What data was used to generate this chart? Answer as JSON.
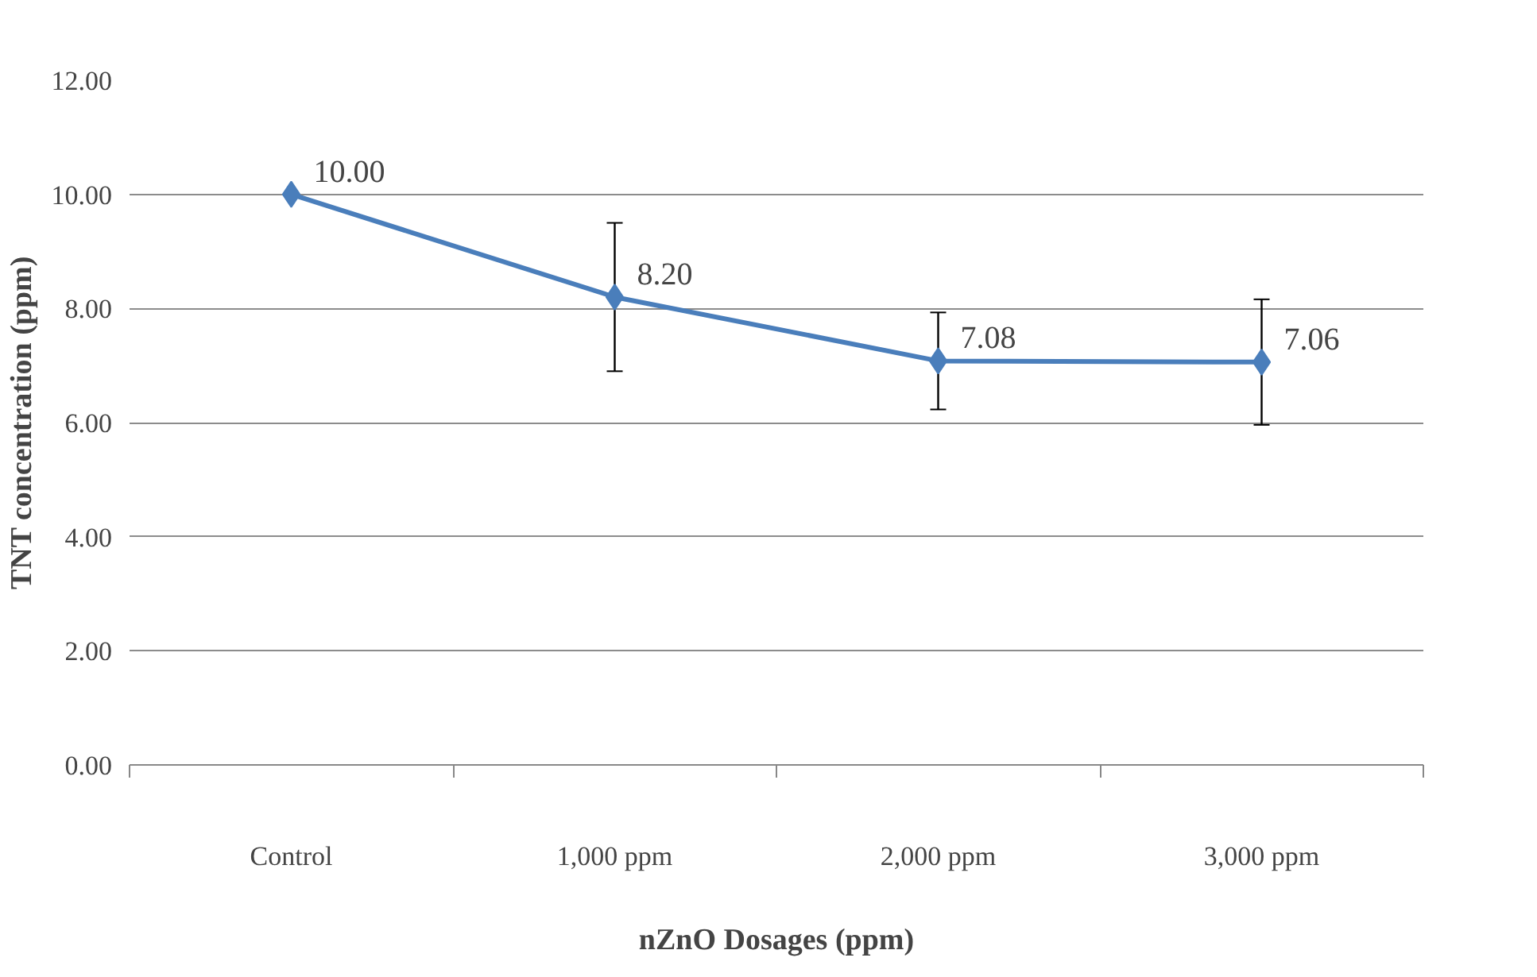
{
  "chart_data": {
    "type": "line",
    "xlabel": "nZnO Dosages (ppm)",
    "ylabel": "TNT concentration (ppm)",
    "categories": [
      "Control",
      "1,000 ppm",
      "2,000 ppm",
      "3,000 ppm"
    ],
    "series": [
      {
        "color": "#4a7ebb",
        "values": [
          10.0,
          8.2,
          7.08,
          7.06
        ],
        "errors": [
          null,
          1.3,
          0.85,
          1.1
        ],
        "value_labels": [
          "10.00",
          "8.20",
          "7.08",
          "7.06"
        ]
      }
    ],
    "ylim": [
      0,
      12
    ],
    "yticks": [
      {
        "value": 0,
        "label": "0.00"
      },
      {
        "value": 2,
        "label": "2.00"
      },
      {
        "value": 4,
        "label": "4.00"
      },
      {
        "value": 6,
        "label": "6.00"
      },
      {
        "value": 8,
        "label": "8.00"
      },
      {
        "value": 10,
        "label": "10.00"
      },
      {
        "value": 12,
        "label": "12.00"
      }
    ],
    "grid": "y",
    "marker": "diamond",
    "line_style": "solid"
  }
}
